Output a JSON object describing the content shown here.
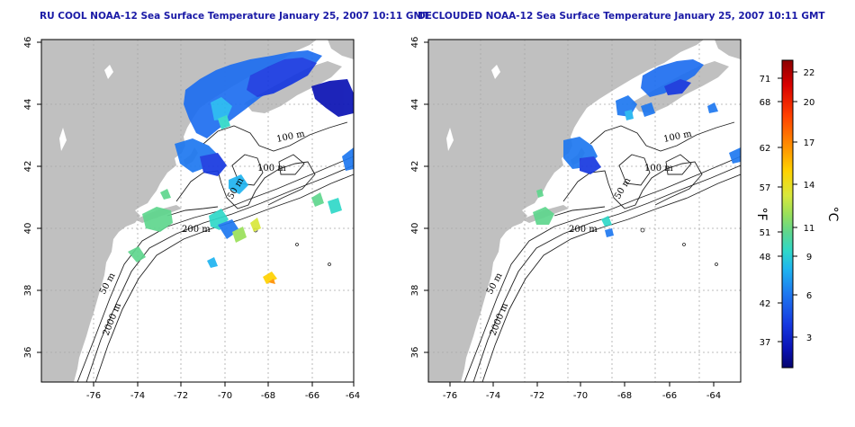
{
  "titles": {
    "left": "RU COOL NOAA-12 Sea Surface Temperature January 25, 2007 10:11 GMT",
    "right": "DECLOUDED NOAA-12 Sea Surface Temperature January 25, 2007 10:11 GMT"
  },
  "map_axes": {
    "lon_ticks": [
      "-76",
      "-74",
      "-72",
      "-70",
      "-68",
      "-66",
      "-64"
    ],
    "lat_ticks": [
      "46",
      "44",
      "42",
      "40",
      "38",
      "36"
    ]
  },
  "contour_labels": {
    "left": [
      "100 m",
      "100 m",
      "50 m",
      "200 m",
      "50 m",
      "2000 m"
    ],
    "right": [
      "100 m",
      "100 m",
      "50 m",
      "200 m",
      "50 m",
      "2000 m"
    ]
  },
  "colorbar": {
    "fahrenheit_ticks": [
      "71",
      "68",
      "62",
      "57",
      "51",
      "48",
      "42",
      "37"
    ],
    "celsius_ticks": [
      "22",
      "20",
      "17",
      "14",
      "11",
      "9",
      "6",
      "3"
    ],
    "fahrenheit_unit": "°F",
    "celsius_unit": "°C",
    "colors": [
      "#8b0000",
      "#d80000",
      "#ff4000",
      "#ff9000",
      "#ffd200",
      "#d8e83c",
      "#9ae05a",
      "#5fd68e",
      "#2fd8c8",
      "#1fb4f0",
      "#1e78f0",
      "#1638e0",
      "#0a12b4",
      "#05046e"
    ]
  },
  "colors": {
    "land": "#c0c0c0",
    "ocean": "#ffffff",
    "title": "#1a1aa6",
    "grid": "#a8a8a8"
  }
}
